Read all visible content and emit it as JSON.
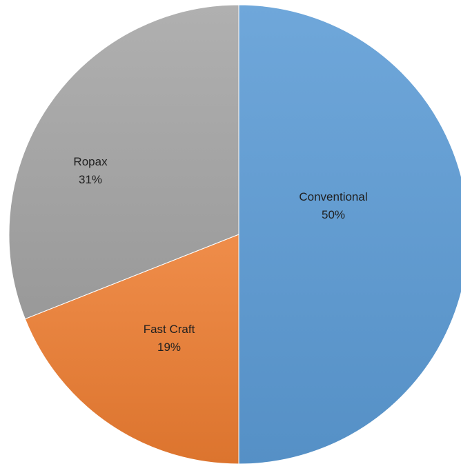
{
  "chart_data": {
    "type": "pie",
    "title": "",
    "categories": [
      "Conventional",
      "Fast Craft",
      "Ropax"
    ],
    "values": [
      50,
      19,
      31
    ],
    "value_labels": [
      "50%",
      "19%",
      "31%"
    ],
    "colors": [
      "#5b9bd5",
      "#ed7d31",
      "#a5a5a5"
    ],
    "start": "12 o'clock",
    "direction": "clockwise",
    "legend": "none",
    "labels_inside": true
  }
}
